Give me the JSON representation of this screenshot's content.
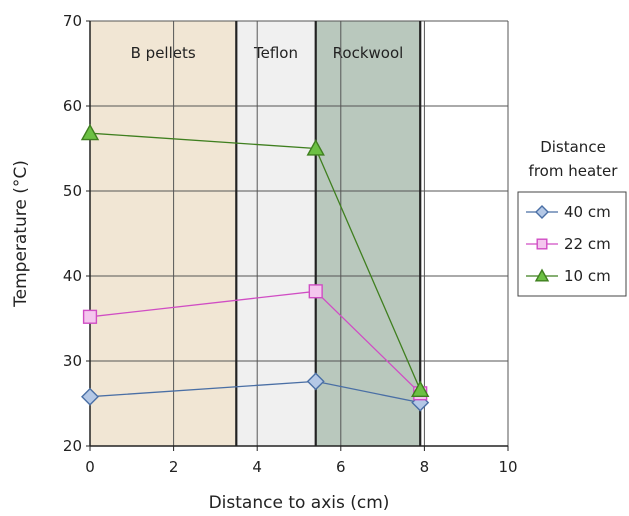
{
  "chart_data": {
    "type": "line",
    "title": "",
    "xlabel": "Distance to axis (cm)",
    "ylabel": "Temperature  (°C)",
    "xlim": [
      0,
      10
    ],
    "ylim": [
      20,
      70
    ],
    "x_ticks": [
      "0",
      "2",
      "4",
      "6",
      "8",
      "10"
    ],
    "y_ticks": [
      "20",
      "30",
      "40",
      "50",
      "60",
      "70"
    ],
    "grid": true,
    "regions": [
      {
        "label": "B pellets",
        "x_start": 0,
        "x_end": 3.5,
        "color": "#f1e6d4"
      },
      {
        "label": "Teflon",
        "x_start": 3.5,
        "x_end": 5.4,
        "color": "#f0f0f0"
      },
      {
        "label": "Rockwool",
        "x_start": 5.4,
        "x_end": 7.9,
        "color": "#b9c8bd"
      }
    ],
    "legend_title": [
      "Distance",
      "from heater"
    ],
    "legend_placement": "right",
    "series": [
      {
        "name": "40 cm",
        "marker": "diamond",
        "color": "#4a6fa5",
        "fill": "#b4c8e6",
        "x": [
          0,
          5.4,
          7.9
        ],
        "y": [
          25.8,
          27.6,
          25.1
        ]
      },
      {
        "name": "22 cm",
        "marker": "square",
        "color": "#d04dc4",
        "fill": "#f4c6ee",
        "x": [
          0,
          5.4,
          7.9
        ],
        "y": [
          35.2,
          38.2,
          26.2
        ]
      },
      {
        "name": "10 cm",
        "marker": "triangle",
        "color": "#3f7f1f",
        "fill": "#6cc043",
        "x": [
          0,
          5.4,
          7.9
        ],
        "y": [
          56.8,
          55.0,
          26.6
        ]
      }
    ]
  }
}
